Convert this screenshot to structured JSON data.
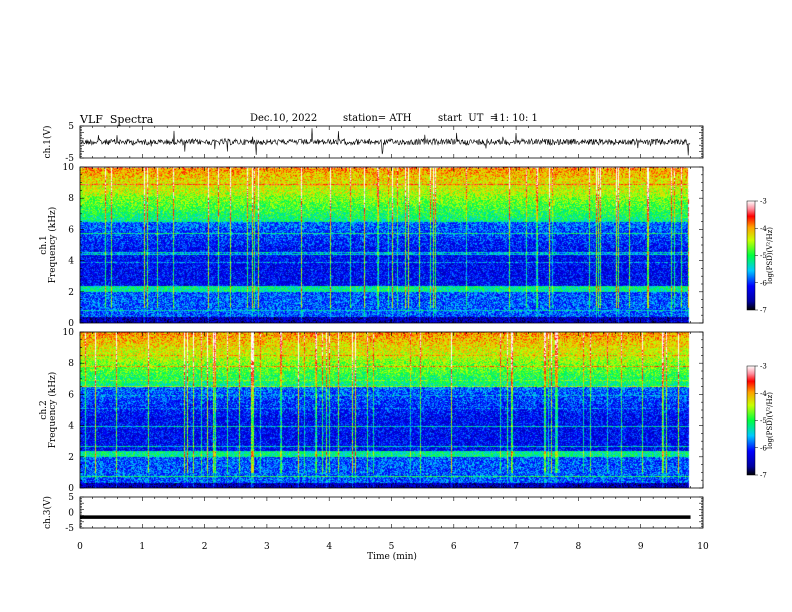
{
  "header": {
    "title": "VLF  Spectra",
    "date": "Dec.10, 2022",
    "station": "station= ATH",
    "start_label": "start  UT  =",
    "start_value": "11: 10: 1"
  },
  "chart_data": [
    {
      "type": "line",
      "panel": "ch1-waveform",
      "ylabel": "ch.1(V)",
      "ylim": [
        -5,
        5
      ],
      "yticks": [
        "5",
        "-5"
      ],
      "xlim": [
        0,
        10
      ],
      "description_series": "noisy waveform around 0 V with frequent spikes",
      "color": "#000000"
    },
    {
      "type": "heatmap",
      "panel": "ch1-spectrogram",
      "ylabel": "ch.1\nFrequency  (kHz)",
      "ylim": [
        0,
        10
      ],
      "yticks": [
        "0",
        "2",
        "4",
        "6",
        "8",
        "10"
      ],
      "xlim": [
        0,
        9.8
      ],
      "colorbar": {
        "label": "log(PSD)(V²/Hz)",
        "ticks": [
          "-3",
          "-4",
          "-5",
          "-6",
          "-7"
        ],
        "range": [
          -7,
          -3
        ]
      }
    },
    {
      "type": "heatmap",
      "panel": "ch2-spectrogram",
      "ylabel": "ch.2\nFrequency  (kHz)",
      "ylim": [
        0,
        10
      ],
      "yticks": [
        "0",
        "2",
        "4",
        "6",
        "8",
        "10"
      ],
      "xlim": [
        0,
        9.8
      ],
      "colorbar": {
        "label": "log(PSD)(V²/Hz)",
        "ticks": [
          "-3",
          "-4",
          "-5",
          "-6",
          "-7"
        ],
        "range": [
          -7,
          -3
        ]
      }
    },
    {
      "type": "line",
      "panel": "ch3-waveform",
      "ylabel": "ch.3(V)",
      "ylim": [
        -5,
        5
      ],
      "yticks": [
        "5",
        "0",
        "-5"
      ],
      "xlim": [
        0,
        10
      ],
      "xlabel": "Time  (min)",
      "xticks": [
        "0",
        "1",
        "2",
        "3",
        "4",
        "5",
        "6",
        "7",
        "8",
        "9",
        "10"
      ],
      "values": [
        -1.5,
        -1.5
      ],
      "color": "#000000"
    }
  ]
}
